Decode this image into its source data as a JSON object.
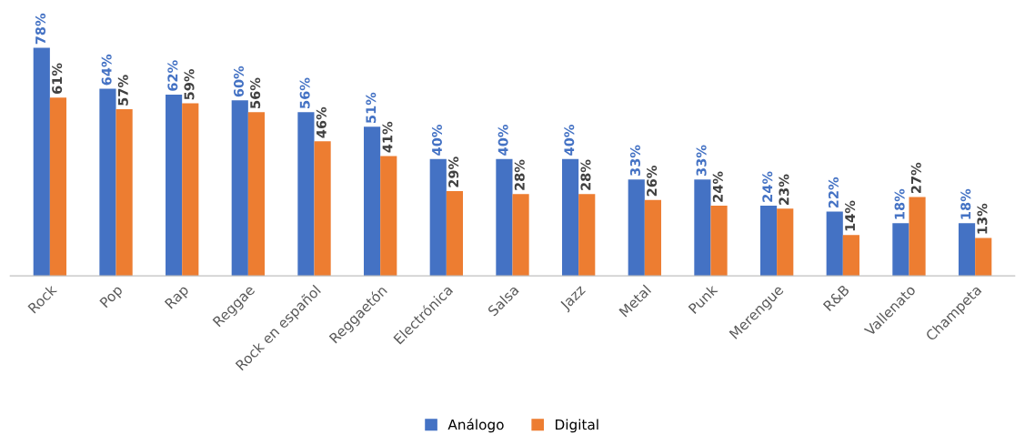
{
  "chart_data": {
    "type": "bar",
    "categories": [
      "Rock",
      "Pop",
      "Rap",
      "Reggae",
      "Rock en español",
      "Reggaetón",
      "Electrónica",
      "Salsa",
      "Jazz",
      "Metal",
      "Punk",
      "Merengue",
      "R&B",
      "Vallenato",
      "Champeta"
    ],
    "series": [
      {
        "name": "Análogo",
        "color": "#4472c4",
        "values": [
          78,
          64,
          62,
          60,
          56,
          51,
          40,
          40,
          40,
          33,
          33,
          24,
          22,
          18,
          18
        ],
        "value_labels": [
          "78%",
          "64%",
          "62%",
          "60%",
          "56%",
          "51%",
          "40%",
          "40%",
          "40%",
          "33%",
          "33%",
          "24%",
          "22%",
          "18%",
          "18%"
        ]
      },
      {
        "name": "Digital",
        "color": "#ed7d31",
        "values": [
          61,
          57,
          59,
          56,
          46,
          41,
          29,
          28,
          28,
          26,
          24,
          23,
          14,
          27,
          13
        ],
        "value_labels": [
          "61%",
          "57%",
          "59%",
          "56%",
          "46%",
          "41%",
          "29%",
          "28%",
          "28%",
          "26%",
          "24%",
          "23%",
          "14%",
          "27%",
          "13%"
        ]
      }
    ],
    "legend": "bottom"
  }
}
